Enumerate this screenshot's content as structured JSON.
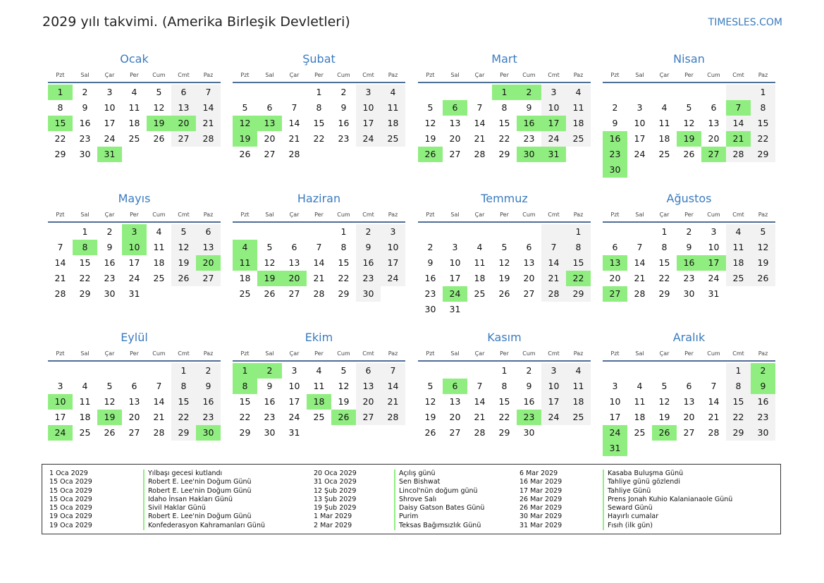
{
  "header": {
    "title": "2029 yılı takvimi. (Amerika Birleşik Devletleri)",
    "brand": "TIMESLES.COM"
  },
  "weekday_labels": [
    "Pzt",
    "Sal",
    "Çar",
    "Per",
    "Cum",
    "Cmt",
    "Paz"
  ],
  "months": [
    {
      "name": "Ocak",
      "offset": 0,
      "days": 31,
      "holidays": [
        1,
        15,
        19,
        20,
        31
      ]
    },
    {
      "name": "Şubat",
      "offset": 3,
      "days": 28,
      "holidays": [
        12,
        13,
        19
      ]
    },
    {
      "name": "Mart",
      "offset": 3,
      "days": 31,
      "holidays": [
        1,
        2,
        6,
        16,
        17,
        26,
        30,
        31
      ]
    },
    {
      "name": "Nisan",
      "offset": 6,
      "days": 30,
      "holidays": [
        7,
        16,
        19,
        21,
        23,
        27,
        30
      ]
    },
    {
      "name": "Mayıs",
      "offset": 1,
      "days": 31,
      "holidays": [
        3,
        8,
        10,
        20
      ]
    },
    {
      "name": "Haziran",
      "offset": 4,
      "days": 30,
      "holidays": [
        4,
        11,
        19,
        20
      ]
    },
    {
      "name": "Temmuz",
      "offset": 6,
      "days": 31,
      "holidays": [
        22,
        24
      ]
    },
    {
      "name": "Ağustos",
      "offset": 2,
      "days": 31,
      "holidays": [
        13,
        16,
        17,
        27
      ]
    },
    {
      "name": "Eylül",
      "offset": 5,
      "days": 30,
      "holidays": [
        10,
        19,
        24,
        30
      ]
    },
    {
      "name": "Ekim",
      "offset": 0,
      "days": 31,
      "holidays": [
        1,
        2,
        8,
        18,
        26
      ]
    },
    {
      "name": "Kasım",
      "offset": 3,
      "days": 30,
      "holidays": [
        6,
        23
      ]
    },
    {
      "name": "Aralık",
      "offset": 5,
      "days": 31,
      "holidays": [
        2,
        9,
        24,
        26,
        31
      ]
    }
  ],
  "holiday_list": [
    [
      {
        "date": "1 Oca 2029",
        "name": "Yılbaşı gecesi kutlandı"
      },
      {
        "date": "15 Oca 2029",
        "name": "Robert E. Lee'nin Doğum Günü"
      },
      {
        "date": "15 Oca 2029",
        "name": "Robert E. Lee'nin Doğum Günü"
      },
      {
        "date": "15 Oca 2029",
        "name": "Idaho İnsan Hakları Günü"
      },
      {
        "date": "15 Oca 2029",
        "name": "Sivil Haklar Günü"
      },
      {
        "date": "19 Oca 2029",
        "name": "Robert E. Lee'nin Doğum Günü"
      },
      {
        "date": "19 Oca 2029",
        "name": "Konfederasyon Kahramanları Günü"
      }
    ],
    [
      {
        "date": "20 Oca 2029",
        "name": "Açılış günü"
      },
      {
        "date": "31 Oca 2029",
        "name": "Sen Bishwat"
      },
      {
        "date": "12 Şub 2029",
        "name": "Lincol'nün doğum günü"
      },
      {
        "date": "13 Şub 2029",
        "name": "Shrove Salı"
      },
      {
        "date": "19 Şub 2029",
        "name": "Daisy Gatson Bates Günü"
      },
      {
        "date": "1 Mar 2029",
        "name": "Purim"
      },
      {
        "date": "2 Mar 2029",
        "name": "Teksas Bağımsızlık Günü"
      }
    ],
    [
      {
        "date": "6 Mar 2029",
        "name": "Kasaba Buluşma Günü"
      },
      {
        "date": "16 Mar 2029",
        "name": "Tahliye günü gözlendi"
      },
      {
        "date": "17 Mar 2029",
        "name": "Tahliye Günü"
      },
      {
        "date": "26 Mar 2029",
        "name": "Prens Jonah Kuhio Kalanianaole Günü"
      },
      {
        "date": "26 Mar 2029",
        "name": "Seward Günü"
      },
      {
        "date": "30 Mar 2029",
        "name": "Hayırlı cumalar"
      },
      {
        "date": "31 Mar 2029",
        "name": "Fısıh (ilk gün)"
      }
    ]
  ],
  "colors": {
    "accent": "#3a7bbf",
    "holiday": "#90ee80",
    "weekend": "#f2f2f2",
    "rule": "#4e6f96"
  }
}
